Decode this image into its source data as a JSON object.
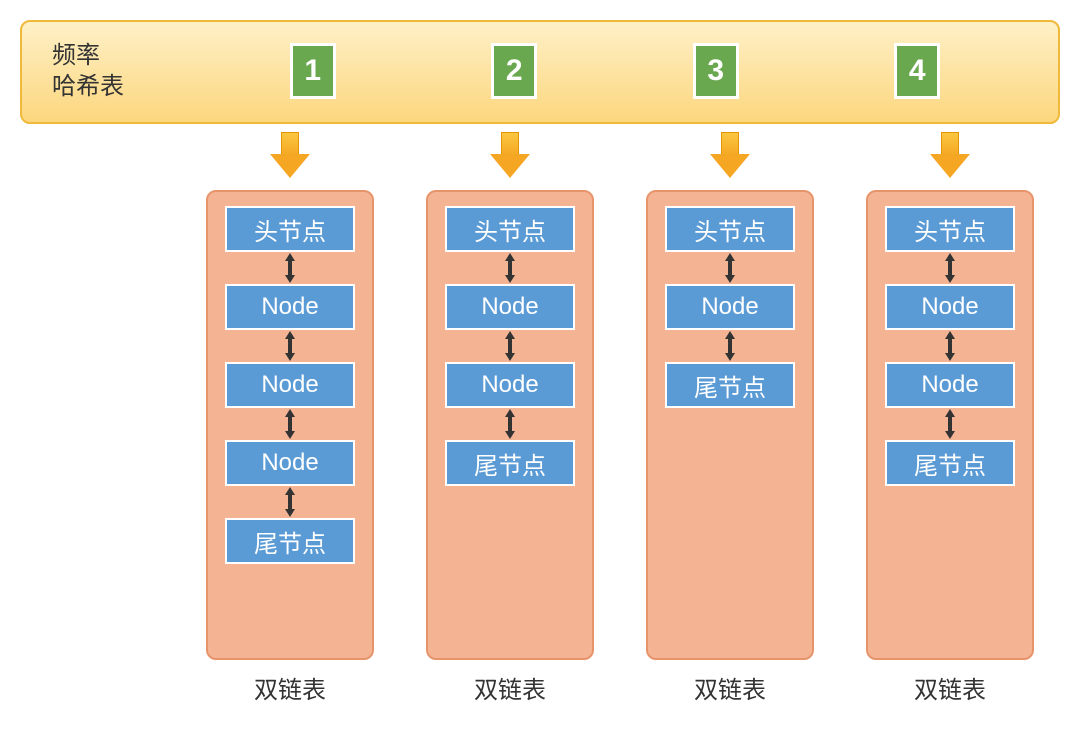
{
  "type": "diagram",
  "header": {
    "label_line1": "频率",
    "label_line2": "哈希表",
    "bg_gradient_top": "#fef0c7",
    "bg_gradient_bottom": "#fcd77e",
    "border_color": "#f0b93a",
    "label_color": "#333333",
    "label_fontsize": 24
  },
  "freq_box_style": {
    "bg": "#6aa84f",
    "border": "#ffffff",
    "text_color": "#ffffff",
    "fontsize": 30
  },
  "arrow_style": {
    "fill_top": "#fbc740",
    "fill_bottom": "#f5a623",
    "border": "#e69500"
  },
  "list_box_style": {
    "bg": "#f4b494",
    "border": "#e8946b",
    "radius": 10
  },
  "node_style": {
    "bg": "#5b9bd5",
    "border": "#ffffff",
    "text_color": "#ffffff",
    "fontsize": 24
  },
  "bi_arrow_color": "#333333",
  "caption_text": "双链表",
  "caption_fontsize": 24,
  "columns": [
    {
      "freq": "1",
      "nodes": [
        "头节点",
        "Node",
        "Node",
        "Node",
        "尾节点"
      ]
    },
    {
      "freq": "2",
      "nodes": [
        "头节点",
        "Node",
        "Node",
        "尾节点"
      ]
    },
    {
      "freq": "3",
      "nodes": [
        "头节点",
        "Node",
        "尾节点"
      ]
    },
    {
      "freq": "4",
      "nodes": [
        "头节点",
        "Node",
        "Node",
        "尾节点"
      ]
    }
  ]
}
